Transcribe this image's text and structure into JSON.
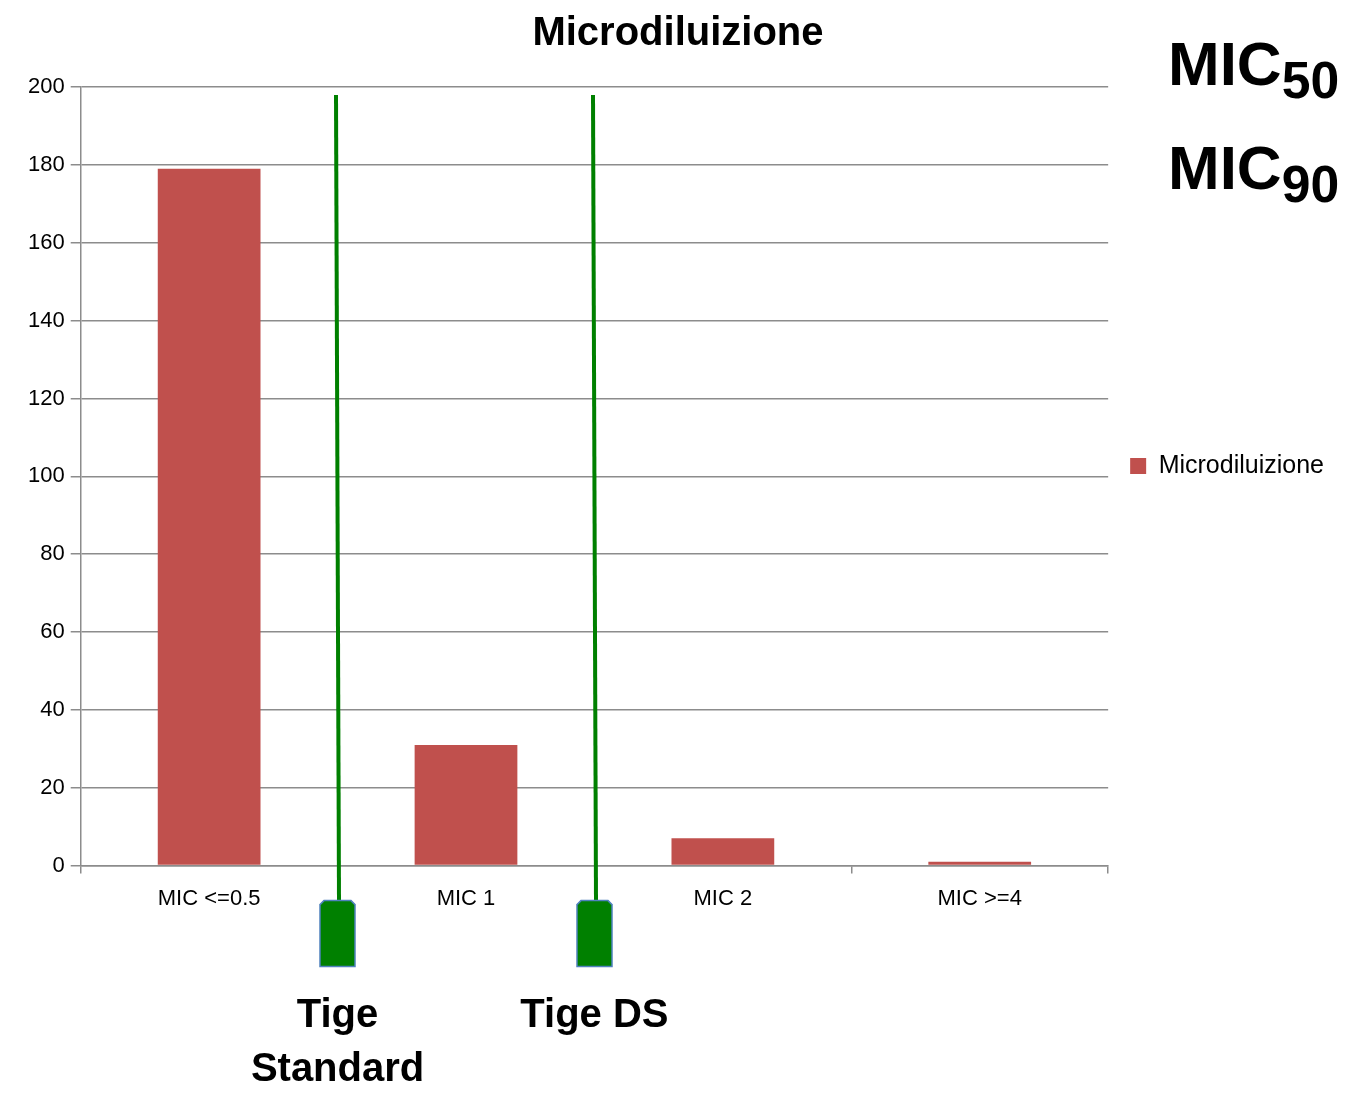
{
  "chart_data": {
    "type": "bar",
    "title": "Microdiluizione",
    "categories": [
      "MIC <=0.5",
      "MIC 1",
      "MIC 2",
      "MIC >=4"
    ],
    "series": [
      {
        "name": "Microdiluizione",
        "color": "#c0504d",
        "values": [
          179,
          31,
          7,
          1
        ]
      }
    ],
    "ylim": [
      0,
      200
    ],
    "yticks": [
      0,
      20,
      40,
      60,
      80,
      100,
      120,
      140,
      160,
      180,
      200
    ],
    "grid": "y",
    "legend": "right",
    "annotations": [
      "MIC$_{50}$",
      "MIC$_{90}$",
      "Tige Standard",
      "Tige DS"
    ]
  }
}
